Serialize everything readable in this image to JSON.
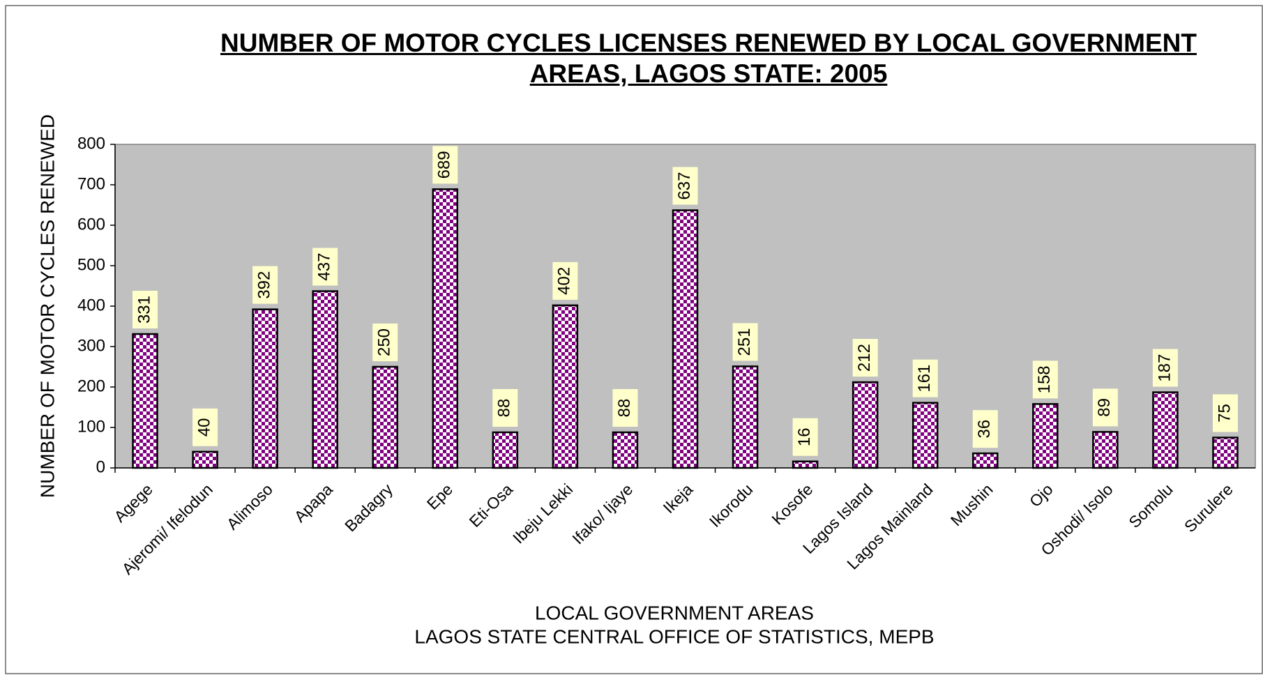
{
  "chart_data": {
    "type": "bar",
    "title": "NUMBER OF MOTOR CYCLES LICENSES RENEWED BY LOCAL GOVERNMENT AREAS, LAGOS STATE: 2005",
    "y_label": "NUMBER OF MOTOR CYCLES RENEWED",
    "x_label": "LOCAL GOVERNMENT AREAS",
    "source": "LAGOS STATE CENTRAL OFFICE OF STATISTICS, MEPB",
    "categories": [
      "Agege",
      "Ajeromi/  Ifelodun",
      "Alimoso",
      "Apapa",
      "Badagry",
      "Epe",
      "Eti-Osa",
      "Ibeju Lekki",
      "Ifako/ Ijaye",
      "Ikeja",
      "Ikorodu",
      "Kosofe",
      "Lagos Island",
      "Lagos Mainland",
      "Mushin",
      "Ojo",
      "Oshodi/ Isolo",
      "Somolu",
      "Surulere"
    ],
    "values": [
      331,
      40,
      392,
      437,
      250,
      689,
      88,
      402,
      88,
      637,
      251,
      16,
      212,
      161,
      36,
      158,
      89,
      187,
      75
    ],
    "color": "#800080",
    "ylim": [
      0,
      800
    ],
    "yticks": [
      0,
      100,
      200,
      300,
      400,
      500,
      600,
      700,
      800
    ]
  }
}
